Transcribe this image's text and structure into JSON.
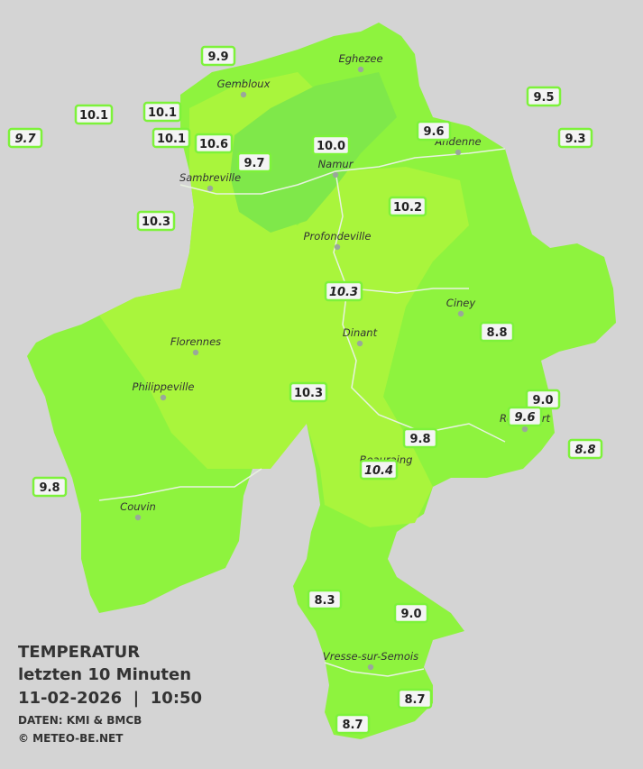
{
  "legend": {
    "title": "TEMPERATUR",
    "period": "letzten 10 Minuten",
    "timestamp": "11-02-2026  |  10:50",
    "source": "DATEN: KMI & BMCB",
    "copyright": "© METEO-BE.NET"
  },
  "cities": [
    "Eghezee",
    "Gembloux",
    "Andenne",
    "Namur",
    "Sambreville",
    "Profondeville",
    "Ciney",
    "Dinant",
    "Florennes",
    "Philippeville",
    "Rochefort",
    "Beauraing",
    "Couvin",
    "Vresse-sur-Semois"
  ],
  "stations": [
    {
      "label": "9.9",
      "italic": false
    },
    {
      "label": "10.1",
      "italic": false
    },
    {
      "label": "10.1",
      "italic": false
    },
    {
      "label": "9.7",
      "italic": true
    },
    {
      "label": "10.1",
      "italic": false
    },
    {
      "label": "10.6",
      "italic": false
    },
    {
      "label": "9.7",
      "italic": false
    },
    {
      "label": "10.0",
      "italic": false
    },
    {
      "label": "9.6",
      "italic": false
    },
    {
      "label": "9.5",
      "italic": false
    },
    {
      "label": "9.3",
      "italic": false
    },
    {
      "label": "10.3",
      "italic": false
    },
    {
      "label": "10.2",
      "italic": false
    },
    {
      "label": "10.3",
      "italic": true
    },
    {
      "label": "8.8",
      "italic": false
    },
    {
      "label": "10.3",
      "italic": false
    },
    {
      "label": "9.0",
      "italic": false
    },
    {
      "label": "9.6",
      "italic": true
    },
    {
      "label": "9.8",
      "italic": false
    },
    {
      "label": "8.8",
      "italic": true
    },
    {
      "label": "10.4",
      "italic": true
    },
    {
      "label": "9.8",
      "italic": false
    },
    {
      "label": "8.3",
      "italic": false
    },
    {
      "label": "9.0",
      "italic": false
    },
    {
      "label": "8.7",
      "italic": false
    },
    {
      "label": "8.7",
      "italic": false
    }
  ]
}
